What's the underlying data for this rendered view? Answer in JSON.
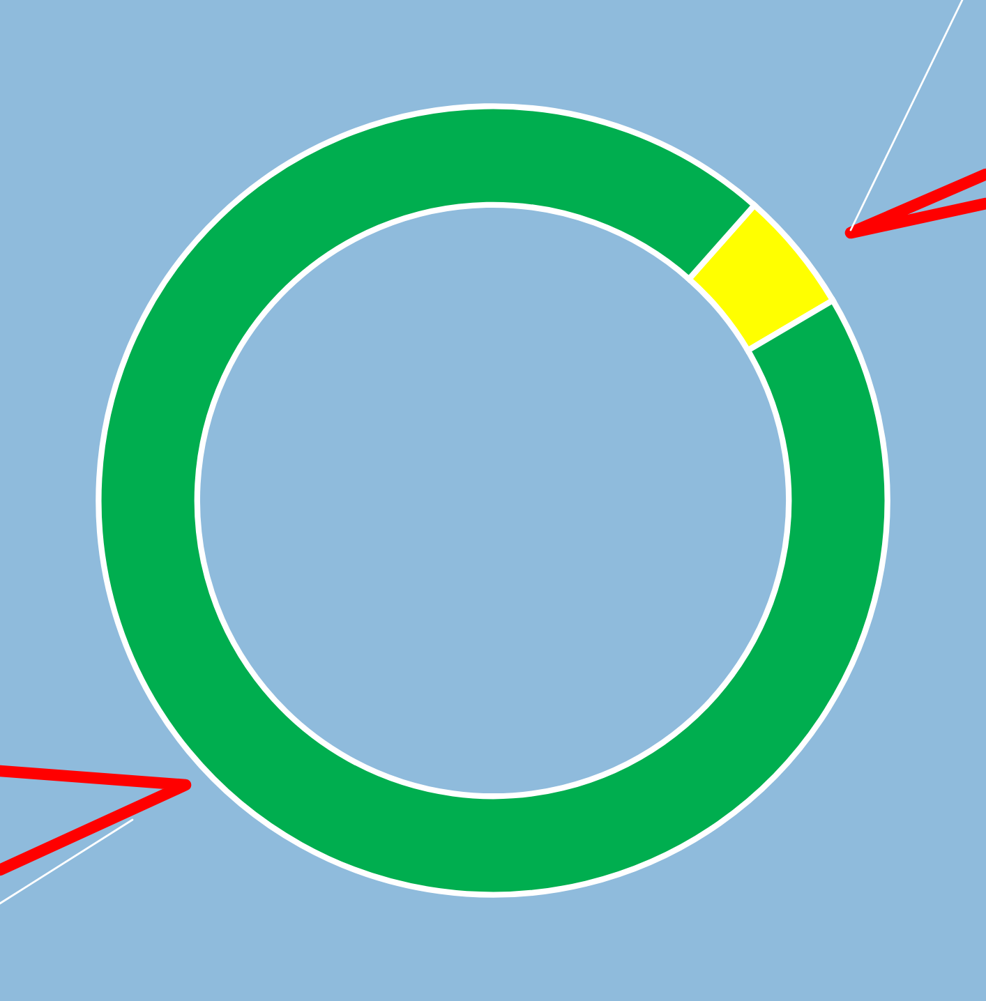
{
  "chart_data": {
    "type": "donut",
    "categories": [
      null,
      null
    ],
    "values": [
      5,
      95
    ],
    "colors": [
      "#ffff00",
      "#00ae4f"
    ]
  }
}
